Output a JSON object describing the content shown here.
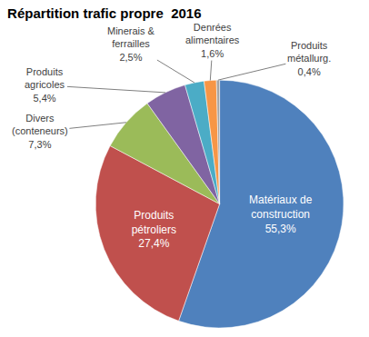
{
  "chart_data": {
    "type": "pie",
    "title": "Répartition trafic propre  2016",
    "categories": [
      "Matériaux de construction",
      "Produits pétroliers",
      "Divers (conteneurs)",
      "Produits agricoles",
      "Minerais & ferrailles",
      "Denrées alimentaires",
      "Produits métallurg."
    ],
    "values": [
      55.3,
      27.4,
      7.3,
      5.4,
      2.5,
      1.6,
      0.4
    ],
    "value_labels": [
      "55,3%",
      "27,4%",
      "7,3%",
      "5,4%",
      "2,5%",
      "1,6%",
      "0,4%"
    ],
    "colors": [
      "#4F81BD",
      "#C0504D",
      "#9BBB59",
      "#8064A2",
      "#4BACC6",
      "#F79646",
      "#A5A5A5"
    ],
    "data_labels": true
  }
}
